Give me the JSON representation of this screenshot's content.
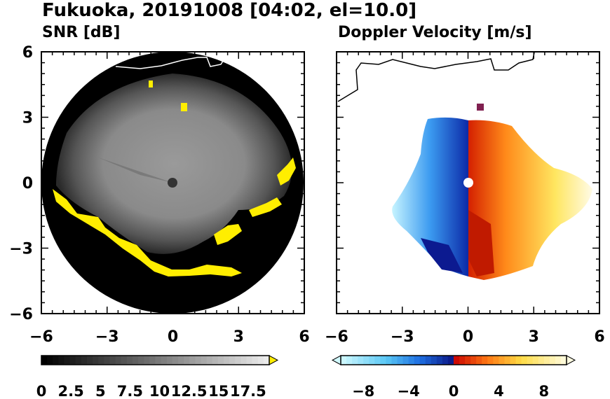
{
  "page": {
    "title": "Fukuoka, 20191008 [04:02, el=10.0]"
  },
  "chart_data": [
    {
      "type": "heatmap",
      "title": "SNR [dB]",
      "xlim": [
        -6,
        6
      ],
      "ylim": [
        -6,
        6
      ],
      "xticks": [
        "−6",
        "−3",
        "0",
        "3",
        "6"
      ],
      "yticks": [
        "6",
        "3",
        "0",
        "−3",
        "−6"
      ],
      "grid": false,
      "colorbar": {
        "orientation": "horizontal",
        "labels": [
          "0",
          "2.5",
          "5",
          "7.5",
          "10",
          "12.5",
          "15",
          "17.5"
        ],
        "extend": "max",
        "colors": {
          "low": "#000000",
          "high": "#ffffff",
          "over": "#ffee00"
        }
      },
      "features": {
        "scan_radius_km": 6,
        "background": "#000000",
        "echo_color": "#8a8a8a",
        "strong_echo_color": "#ffee00",
        "coastline_color": "#ffffff"
      }
    },
    {
      "type": "heatmap",
      "title": "Doppler Velocity [m/s]",
      "xlim": [
        -6,
        6
      ],
      "ylim": [
        -6,
        6
      ],
      "xticks": [
        "−6",
        "−3",
        "0",
        "3",
        "6"
      ],
      "yticks": [],
      "grid": false,
      "colorbar": {
        "orientation": "horizontal",
        "labels": [
          "−8",
          "−4",
          "0",
          "4",
          "8"
        ],
        "extend": "both",
        "colors": {
          "min": "#0a1a80",
          "zero_neg": "#001080",
          "zero_pos": "#c80000",
          "max": "#ffffe0"
        }
      },
      "features": {
        "coastline_color": "#000000",
        "negative_color": "#2a6fe0",
        "positive_color": "#ff8c1a"
      }
    }
  ]
}
